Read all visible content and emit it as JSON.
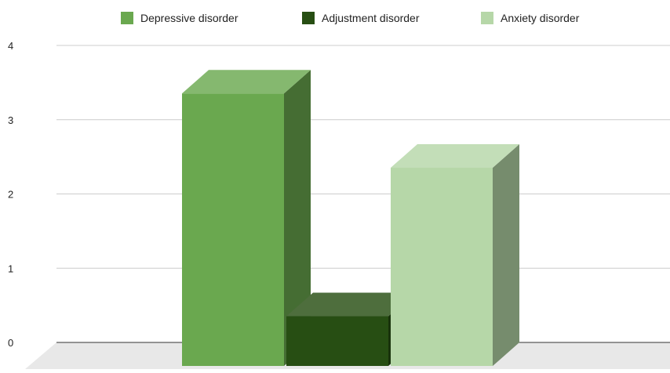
{
  "chart_data": {
    "type": "bar",
    "style": "3d",
    "categories": [
      ""
    ],
    "series": [
      {
        "name": "Depressive disorder",
        "values": [
          3.67
        ],
        "color": "#6aa84f"
      },
      {
        "name": "Adjustment disorder",
        "values": [
          0.67
        ],
        "color": "#274e13"
      },
      {
        "name": "Anxiety disorder",
        "values": [
          2.67
        ],
        "color": "#b6d7a8"
      }
    ],
    "title": "",
    "xlabel": "",
    "ylabel": "",
    "ylim": [
      0,
      4
    ],
    "yticks": [
      "0",
      "1",
      "2",
      "3",
      "4"
    ],
    "grid": true,
    "legend_position": "top"
  }
}
